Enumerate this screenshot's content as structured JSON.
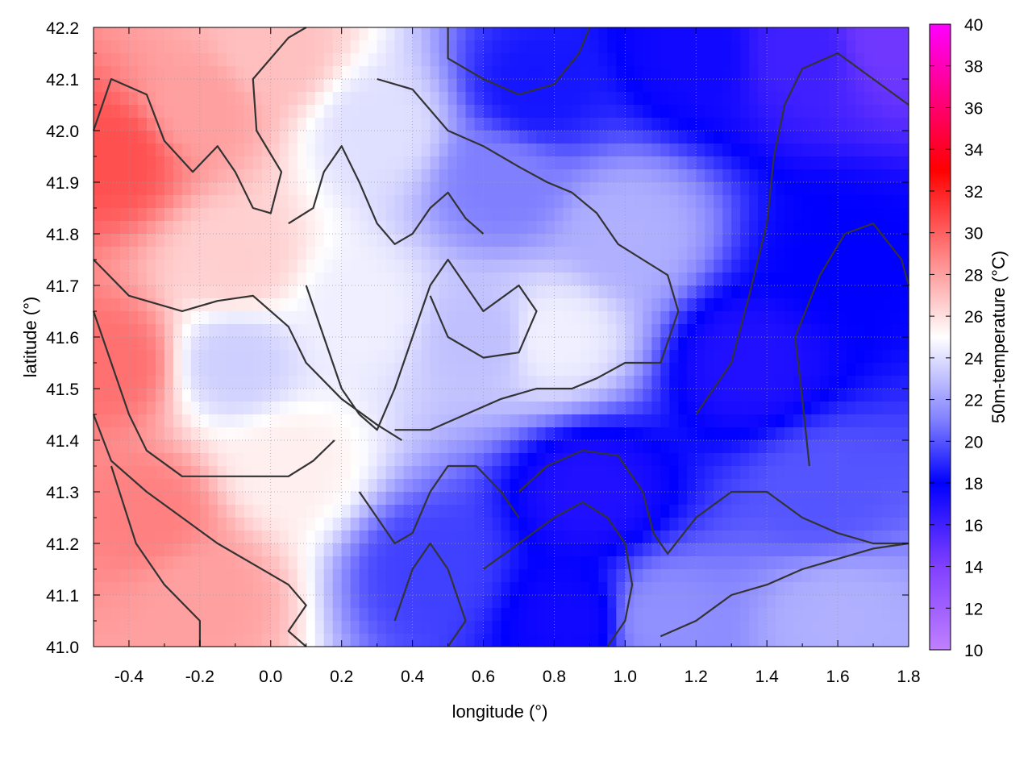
{
  "chart_data": {
    "type": "heatmap",
    "xlabel": "longitude (°)",
    "ylabel": "latitude (°)",
    "colorbar_label": "50m-temperature (°C)",
    "xlim": [
      -0.5,
      1.8
    ],
    "ylim": [
      41.0,
      42.2
    ],
    "x_ticks": [
      -0.4,
      -0.2,
      0.0,
      0.2,
      0.4,
      0.6,
      0.8,
      1.0,
      1.2,
      1.4,
      1.6,
      1.8
    ],
    "x_tick_labels": [
      "-0.4",
      "-0.2",
      "0.0",
      "0.2",
      "0.4",
      "0.6",
      "0.8",
      "1.0",
      "1.2",
      "1.4",
      "1.6",
      "1.8"
    ],
    "y_ticks": [
      41.0,
      41.1,
      41.2,
      41.3,
      41.4,
      41.5,
      41.6,
      41.7,
      41.8,
      41.9,
      42.0,
      42.1,
      42.2
    ],
    "y_tick_labels": [
      "41.0",
      "41.1",
      "41.2",
      "41.3",
      "41.4",
      "41.5",
      "41.6",
      "41.7",
      "41.8",
      "41.9",
      "42.0",
      "42.1",
      "42.2"
    ],
    "colorbar_range": [
      10,
      40
    ],
    "colorbar_ticks": [
      10,
      12,
      14,
      16,
      18,
      20,
      22,
      24,
      26,
      28,
      30,
      32,
      34,
      36,
      38,
      40
    ],
    "colorbar_tick_labels": [
      "10",
      "12",
      "14",
      "16",
      "18",
      "20",
      "22",
      "24",
      "26",
      "28",
      "30",
      "32",
      "34",
      "36",
      "38",
      "40"
    ],
    "colormap": [
      {
        "value": 10,
        "color": "#c080ff"
      },
      {
        "value": 14,
        "color": "#8040ff"
      },
      {
        "value": 18,
        "color": "#0000ff"
      },
      {
        "value": 21,
        "color": "#8080ff"
      },
      {
        "value": 25,
        "color": "#ffffff"
      },
      {
        "value": 29,
        "color": "#ff8080"
      },
      {
        "value": 33,
        "color": "#ff0000"
      },
      {
        "value": 40,
        "color": "#ff00ff"
      }
    ],
    "field_anchors": [
      {
        "lon": -0.45,
        "lat": 41.95,
        "temp": 30.5
      },
      {
        "lon": -0.45,
        "lat": 41.55,
        "temp": 29.5
      },
      {
        "lon": -0.35,
        "lat": 41.25,
        "temp": 29.0
      },
      {
        "lon": -0.2,
        "lat": 41.1,
        "temp": 28.0
      },
      {
        "lon": -0.2,
        "lat": 42.05,
        "temp": 28.0
      },
      {
        "lon": 0.0,
        "lat": 42.15,
        "temp": 27.0
      },
      {
        "lon": -0.1,
        "lat": 41.75,
        "temp": 26.5
      },
      {
        "lon": -0.1,
        "lat": 41.55,
        "temp": 23.5
      },
      {
        "lon": 0.05,
        "lat": 41.35,
        "temp": 25.5
      },
      {
        "lon": 0.25,
        "lat": 41.65,
        "temp": 24.5
      },
      {
        "lon": 0.3,
        "lat": 42.0,
        "temp": 24.0
      },
      {
        "lon": 0.45,
        "lat": 41.15,
        "temp": 19.5
      },
      {
        "lon": 0.6,
        "lat": 41.6,
        "temp": 23.0
      },
      {
        "lon": 0.65,
        "lat": 41.9,
        "temp": 21.0
      },
      {
        "lon": 0.75,
        "lat": 42.08,
        "temp": 18.5
      },
      {
        "lon": 0.8,
        "lat": 41.6,
        "temp": 24.5
      },
      {
        "lon": 0.9,
        "lat": 41.3,
        "temp": 17.0
      },
      {
        "lon": 0.85,
        "lat": 41.05,
        "temp": 17.5
      },
      {
        "lon": 1.0,
        "lat": 41.8,
        "temp": 22.5
      },
      {
        "lon": 1.2,
        "lat": 42.15,
        "temp": 17.5
      },
      {
        "lon": 1.35,
        "lat": 41.55,
        "temp": 17.0
      },
      {
        "lon": 1.5,
        "lat": 42.15,
        "temp": 16.0
      },
      {
        "lon": 1.6,
        "lat": 41.75,
        "temp": 18.0
      },
      {
        "lon": 1.55,
        "lat": 41.3,
        "temp": 20.0
      },
      {
        "lon": 1.6,
        "lat": 41.05,
        "temp": 22.5
      },
      {
        "lon": 1.75,
        "lat": 42.18,
        "temp": 14.5
      },
      {
        "lon": 1.1,
        "lat": 41.05,
        "temp": 21.5
      }
    ],
    "contours": [
      [
        [
          -0.5,
          42.0
        ],
        [
          -0.45,
          42.1
        ],
        [
          -0.35,
          42.07
        ],
        [
          -0.3,
          41.98
        ],
        [
          -0.22,
          41.92
        ],
        [
          -0.15,
          41.97
        ],
        [
          -0.1,
          41.92
        ],
        [
          -0.05,
          41.85
        ],
        [
          0.0,
          41.84
        ],
        [
          0.03,
          41.92
        ],
        [
          -0.04,
          42.0
        ],
        [
          -0.05,
          42.1
        ],
        [
          0.05,
          42.18
        ],
        [
          0.1,
          42.2
        ]
      ],
      [
        [
          -0.5,
          41.75
        ],
        [
          -0.4,
          41.68
        ],
        [
          -0.25,
          41.65
        ],
        [
          -0.15,
          41.67
        ],
        [
          -0.05,
          41.68
        ],
        [
          0.05,
          41.62
        ],
        [
          0.1,
          41.55
        ],
        [
          0.2,
          41.48
        ],
        [
          0.3,
          41.43
        ],
        [
          0.37,
          41.4
        ]
      ],
      [
        [
          -0.5,
          41.65
        ],
        [
          -0.45,
          41.55
        ],
        [
          -0.4,
          41.45
        ],
        [
          -0.35,
          41.38
        ],
        [
          -0.25,
          41.33
        ],
        [
          -0.1,
          41.33
        ],
        [
          0.05,
          41.33
        ],
        [
          0.12,
          41.36
        ],
        [
          0.18,
          41.4
        ]
      ],
      [
        [
          -0.5,
          41.45
        ],
        [
          -0.45,
          41.36
        ],
        [
          -0.35,
          41.3
        ],
        [
          -0.25,
          41.25
        ],
        [
          -0.15,
          41.2
        ],
        [
          -0.05,
          41.16
        ],
        [
          0.05,
          41.12
        ],
        [
          0.1,
          41.08
        ],
        [
          0.05,
          41.03
        ],
        [
          0.1,
          41.0
        ]
      ],
      [
        [
          -0.45,
          41.35
        ],
        [
          -0.38,
          41.2
        ],
        [
          -0.3,
          41.12
        ],
        [
          -0.2,
          41.05
        ],
        [
          -0.2,
          41.0
        ]
      ],
      [
        [
          0.5,
          42.2
        ],
        [
          0.5,
          42.14
        ],
        [
          0.6,
          42.1
        ],
        [
          0.7,
          42.07
        ],
        [
          0.8,
          42.09
        ],
        [
          0.87,
          42.15
        ],
        [
          0.9,
          42.2
        ]
      ],
      [
        [
          0.3,
          42.1
        ],
        [
          0.4,
          42.08
        ],
        [
          0.5,
          42.0
        ],
        [
          0.6,
          41.97
        ],
        [
          0.7,
          41.93
        ],
        [
          0.78,
          41.9
        ],
        [
          0.85,
          41.88
        ],
        [
          0.92,
          41.84
        ],
        [
          0.98,
          41.78
        ],
        [
          1.05,
          41.75
        ],
        [
          1.12,
          41.72
        ],
        [
          1.15,
          41.65
        ],
        [
          1.1,
          41.55
        ],
        [
          1.0,
          41.55
        ],
        [
          0.92,
          41.52
        ],
        [
          0.85,
          41.5
        ],
        [
          0.75,
          41.5
        ],
        [
          0.65,
          41.48
        ],
        [
          0.55,
          41.45
        ],
        [
          0.45,
          41.42
        ],
        [
          0.35,
          41.42
        ]
      ],
      [
        [
          0.1,
          41.7
        ],
        [
          0.15,
          41.6
        ],
        [
          0.2,
          41.5
        ],
        [
          0.25,
          41.45
        ],
        [
          0.3,
          41.42
        ],
        [
          0.35,
          41.5
        ],
        [
          0.4,
          41.6
        ],
        [
          0.45,
          41.7
        ],
        [
          0.5,
          41.75
        ],
        [
          0.55,
          41.7
        ],
        [
          0.6,
          41.65
        ],
        [
          0.7,
          41.7
        ],
        [
          0.75,
          41.65
        ],
        [
          0.7,
          41.57
        ],
        [
          0.6,
          41.56
        ],
        [
          0.5,
          41.6
        ],
        [
          0.45,
          41.68
        ]
      ],
      [
        [
          0.7,
          41.3
        ],
        [
          0.78,
          41.35
        ],
        [
          0.88,
          41.38
        ],
        [
          0.98,
          41.37
        ],
        [
          1.05,
          41.3
        ],
        [
          1.08,
          41.22
        ],
        [
          1.12,
          41.18
        ],
        [
          1.2,
          41.25
        ],
        [
          1.3,
          41.3
        ],
        [
          1.4,
          41.3
        ],
        [
          1.5,
          41.25
        ],
        [
          1.6,
          41.22
        ],
        [
          1.7,
          41.2
        ],
        [
          1.8,
          41.2
        ]
      ],
      [
        [
          0.6,
          41.15
        ],
        [
          0.7,
          41.2
        ],
        [
          0.8,
          41.25
        ],
        [
          0.88,
          41.28
        ],
        [
          0.95,
          41.25
        ],
        [
          1.0,
          41.2
        ],
        [
          1.02,
          41.12
        ],
        [
          1.0,
          41.05
        ],
        [
          0.95,
          41.0
        ]
      ],
      [
        [
          1.1,
          41.02
        ],
        [
          1.2,
          41.05
        ],
        [
          1.3,
          41.1
        ],
        [
          1.4,
          41.12
        ],
        [
          1.5,
          41.15
        ],
        [
          1.6,
          41.17
        ],
        [
          1.7,
          41.19
        ],
        [
          1.8,
          41.2
        ]
      ],
      [
        [
          1.2,
          41.45
        ],
        [
          1.3,
          41.55
        ],
        [
          1.35,
          41.68
        ],
        [
          1.4,
          41.82
        ],
        [
          1.42,
          41.95
        ],
        [
          1.45,
          42.05
        ],
        [
          1.5,
          42.12
        ],
        [
          1.6,
          42.15
        ],
        [
          1.7,
          42.1
        ],
        [
          1.8,
          42.05
        ]
      ],
      [
        [
          1.52,
          41.35
        ],
        [
          1.5,
          41.48
        ],
        [
          1.48,
          41.6
        ],
        [
          1.55,
          41.72
        ],
        [
          1.62,
          41.8
        ],
        [
          1.7,
          41.82
        ],
        [
          1.78,
          41.75
        ],
        [
          1.8,
          41.7
        ]
      ],
      [
        [
          0.35,
          41.05
        ],
        [
          0.4,
          41.15
        ],
        [
          0.45,
          41.2
        ],
        [
          0.5,
          41.15
        ],
        [
          0.55,
          41.05
        ],
        [
          0.5,
          41.0
        ]
      ],
      [
        [
          0.05,
          41.82
        ],
        [
          0.12,
          41.85
        ],
        [
          0.15,
          41.92
        ],
        [
          0.2,
          41.97
        ],
        [
          0.25,
          41.9
        ],
        [
          0.3,
          41.82
        ],
        [
          0.35,
          41.78
        ],
        [
          0.4,
          41.8
        ],
        [
          0.45,
          41.85
        ],
        [
          0.5,
          41.88
        ],
        [
          0.55,
          41.83
        ],
        [
          0.6,
          41.8
        ]
      ],
      [
        [
          0.25,
          41.3
        ],
        [
          0.3,
          41.25
        ],
        [
          0.35,
          41.2
        ],
        [
          0.4,
          41.22
        ],
        [
          0.45,
          41.3
        ],
        [
          0.5,
          41.35
        ],
        [
          0.58,
          41.35
        ],
        [
          0.65,
          41.3
        ],
        [
          0.7,
          41.25
        ]
      ]
    ]
  }
}
